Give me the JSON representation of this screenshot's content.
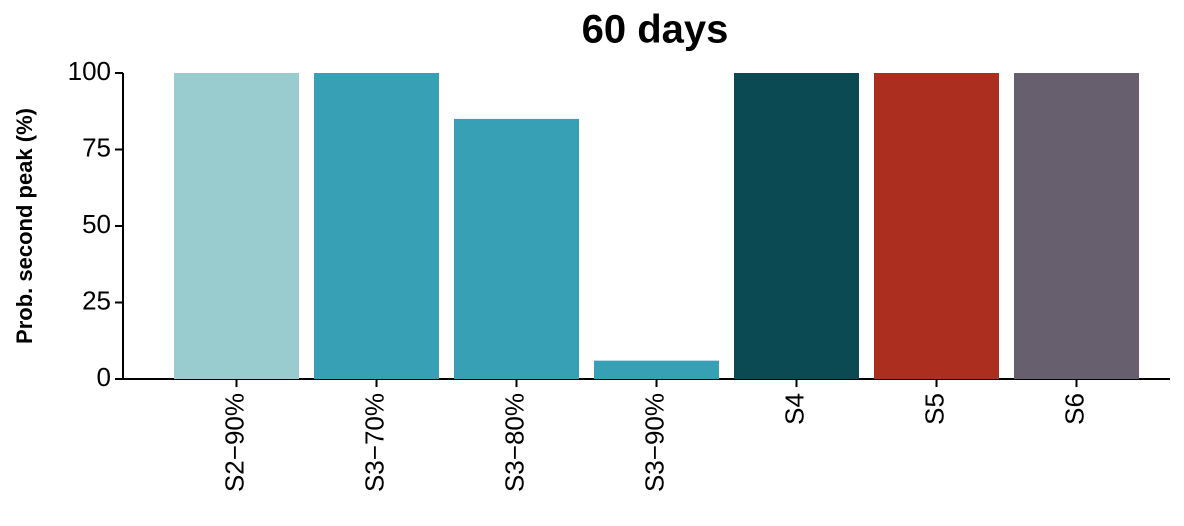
{
  "chart_data": {
    "type": "bar",
    "title": "60 days",
    "y_label": "Prob. second peak (%)",
    "categories": [
      "S2−90%",
      "S3−70%",
      "S3−80%",
      "S3−90%",
      "S4",
      "S5",
      "S6"
    ],
    "values": [
      100,
      100,
      85,
      6,
      100,
      100,
      100
    ],
    "colors": [
      "#99cccf",
      "#38a0b5",
      "#38a0b5",
      "#38a0b5",
      "#0b4a52",
      "#ab2e1f",
      "#675f6e"
    ],
    "ylim": [
      0,
      100
    ],
    "yticks": [
      0,
      25,
      50,
      75,
      100
    ],
    "grid": false
  }
}
